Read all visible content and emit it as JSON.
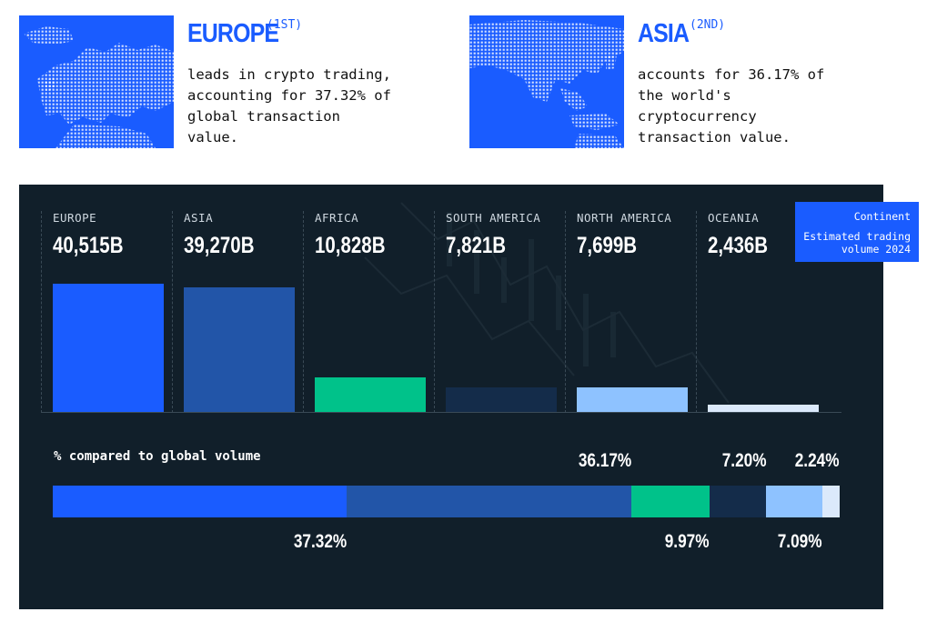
{
  "cards": [
    {
      "name": "EUROPE",
      "rank": "(1ST)",
      "desc": "leads in crypto trading, accounting for 37.32% of global transaction value."
    },
    {
      "name": "ASIA",
      "rank": "(2ND)",
      "desc": "accounts for 36.17% of the world's cryptocurrency transaction value."
    }
  ],
  "legend": {
    "line1": "Continent",
    "line2": "Estimated trading volume 2024"
  },
  "colors": {
    "brand": "#1a5cff",
    "panel": "#12202a",
    "europe": "#1a5cff",
    "asia": "#2255a8",
    "africa": "#00c28a",
    "south_america": "#142c4a",
    "north_america": "#8ec2ff",
    "oceania": "#dbe9fb"
  },
  "chart_data": [
    {
      "type": "bar",
      "categories": [
        "EUROPE",
        "ASIA",
        "AFRICA",
        "SOUTH AMERICA",
        "NORTH AMERICA",
        "OCEANIA"
      ],
      "value_labels": [
        "40,515B",
        "39,270B",
        "10,828B",
        "7,821B",
        "7,699B",
        "2,436B"
      ],
      "values": [
        40515,
        39270,
        10828,
        7821,
        7699,
        2436
      ],
      "colors": [
        "#1a5cff",
        "#2255a8",
        "#00c28a",
        "#142c4a",
        "#8ec2ff",
        "#dbe9fb"
      ],
      "ylim": [
        0,
        40515
      ],
      "legend": [
        "Continent",
        "Estimated trading volume 2024"
      ],
      "legend_position": "top-right"
    },
    {
      "type": "bar",
      "orientation": "horizontal-stacked",
      "title": "% compared to global volume",
      "categories": [
        "EUROPE",
        "ASIA",
        "AFRICA",
        "SOUTH AMERICA",
        "NORTH AMERICA",
        "OCEANIA"
      ],
      "values": [
        37.32,
        36.17,
        9.97,
        7.2,
        7.09,
        2.24
      ],
      "labels": [
        "37.32%",
        "36.17%",
        "9.97%",
        "7.20%",
        "7.09%",
        "2.24%"
      ],
      "colors": [
        "#1a5cff",
        "#2255a8",
        "#00c28a",
        "#142c4a",
        "#8ec2ff",
        "#dbe9fb"
      ],
      "label_side": [
        "below",
        "above",
        "below",
        "above",
        "below",
        "above"
      ]
    }
  ]
}
